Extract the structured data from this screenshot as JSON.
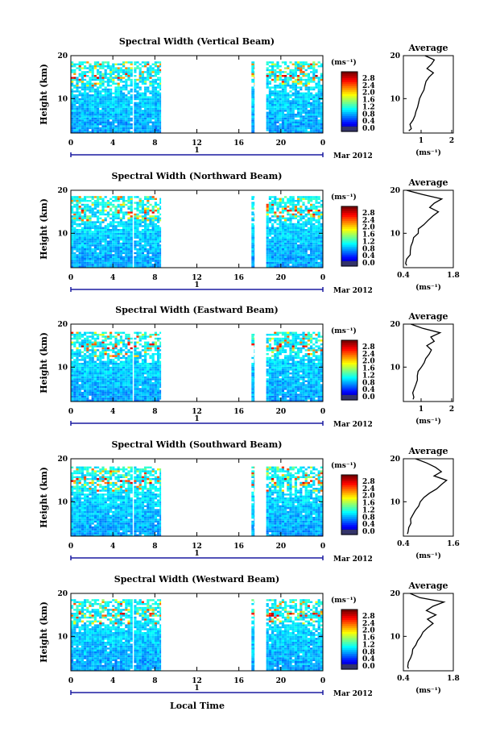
{
  "figure": {
    "units_label": "(ms⁻¹)",
    "average_title": "Average",
    "average_xlabel": "(ms⁻¹)",
    "height_label": "Height (km)",
    "local_time_label": "Local Time",
    "date_label": "Mar 2012",
    "day_marker": "1",
    "colors": {
      "axis": "#000000",
      "day_marker": "#1a1aa0"
    }
  },
  "chart_data": [
    {
      "type": "heatmap",
      "title": "Spectral Width (Vertical Beam)",
      "xlabel": "Local Time",
      "ylabel": "Height (km)",
      "xlim": [
        0,
        24
      ],
      "ylim": [
        2,
        20
      ],
      "xticks": [
        "0",
        "4",
        "8",
        "12",
        "16",
        "20",
        "0"
      ],
      "yticks": [
        "20",
        "10"
      ],
      "colorbar": {
        "label": "(ms⁻¹)",
        "ticks": [
          "2.8",
          "2.4",
          "2.0",
          "1.6",
          "1.2",
          "0.8",
          "0.4",
          "0.0"
        ],
        "range": [
          0,
          3.0
        ]
      },
      "data_segments": [
        [
          0,
          5.9
        ],
        [
          6.0,
          8.6
        ],
        [
          17.2,
          17.5
        ],
        [
          18.6,
          24.0
        ]
      ],
      "top_km": 19.0,
      "average_profile": {
        "xlim": [
          0.2,
          2.2
        ],
        "xticks": [
          "1",
          "2"
        ],
        "height_km": [
          2.5,
          3,
          4,
          5,
          6,
          7,
          8,
          9,
          10,
          11,
          12,
          13,
          14,
          15,
          16,
          17,
          18,
          19,
          20
        ],
        "values": [
          0.45,
          0.55,
          0.52,
          0.6,
          0.65,
          0.7,
          0.75,
          0.82,
          0.9,
          0.95,
          1.0,
          1.05,
          1.15,
          1.25,
          1.4,
          1.1,
          1.3,
          1.5,
          1.1
        ]
      }
    },
    {
      "type": "heatmap",
      "title": "Spectral Width (Northward Beam)",
      "xlabel": "Local Time",
      "ylabel": "Height (km)",
      "xlim": [
        0,
        24
      ],
      "ylim": [
        2,
        20
      ],
      "xticks": [
        "0",
        "4",
        "8",
        "12",
        "16",
        "20",
        "0"
      ],
      "yticks": [
        "20",
        "10"
      ],
      "colorbar": {
        "label": "(ms⁻¹)",
        "ticks": [
          "2.8",
          "2.4",
          "2.0",
          "1.6",
          "1.2",
          "0.8",
          "0.4",
          "0.0"
        ],
        "range": [
          0,
          3.0
        ]
      },
      "data_segments": [
        [
          0,
          5.9
        ],
        [
          6.0,
          8.6
        ],
        [
          17.2,
          17.5
        ],
        [
          18.6,
          24.0
        ]
      ],
      "top_km": 18.8,
      "average_profile": {
        "xlim": [
          0.4,
          1.8
        ],
        "xticks": [
          "0.4",
          "1.8"
        ],
        "height_km": [
          2.5,
          3,
          4,
          5,
          6,
          7,
          8,
          9,
          10,
          11,
          12,
          13,
          14,
          15,
          16,
          17,
          18,
          19,
          20
        ],
        "values": [
          0.5,
          0.48,
          0.52,
          0.55,
          0.6,
          0.62,
          0.68,
          0.72,
          0.78,
          0.85,
          0.95,
          1.05,
          1.2,
          1.35,
          1.1,
          1.25,
          1.45,
          0.9,
          0.5
        ]
      }
    },
    {
      "type": "heatmap",
      "title": "Spectral Width (Eastward Beam)",
      "xlabel": "Local Time",
      "ylabel": "Height (km)",
      "xlim": [
        0,
        24
      ],
      "ylim": [
        2,
        20
      ],
      "xticks": [
        "0",
        "4",
        "8",
        "12",
        "16",
        "20",
        "0"
      ],
      "yticks": [
        "20",
        "10"
      ],
      "colorbar": {
        "label": "(ms⁻¹)",
        "ticks": [
          "2.8",
          "2.4",
          "2.0",
          "1.6",
          "1.2",
          "0.8",
          "0.4",
          "0.0"
        ],
        "range": [
          0,
          3.0
        ]
      },
      "data_segments": [
        [
          0,
          5.9
        ],
        [
          6.0,
          8.6
        ],
        [
          17.2,
          17.5
        ],
        [
          18.6,
          24.0
        ]
      ],
      "top_km": 18.5,
      "average_profile": {
        "xlim": [
          0.2,
          2.2
        ],
        "xticks": [
          "1",
          "2"
        ],
        "height_km": [
          2.5,
          3,
          4,
          5,
          6,
          7,
          8,
          9,
          10,
          11,
          12,
          13,
          14,
          15,
          16,
          17,
          18,
          19,
          20
        ],
        "values": [
          0.55,
          0.6,
          0.58,
          0.62,
          0.68,
          0.72,
          0.8,
          0.85,
          0.95,
          1.0,
          1.05,
          1.2,
          1.35,
          1.15,
          1.5,
          1.3,
          1.7,
          1.0,
          0.45
        ]
      }
    },
    {
      "type": "heatmap",
      "title": "Spectral Width (Southward Beam)",
      "xlabel": "Local Time",
      "ylabel": "Height (km)",
      "xlim": [
        0,
        24
      ],
      "ylim": [
        2,
        20
      ],
      "xticks": [
        "0",
        "4",
        "8",
        "12",
        "16",
        "20",
        "0"
      ],
      "yticks": [
        "20",
        "10"
      ],
      "colorbar": {
        "label": "(ms⁻¹)",
        "ticks": [
          "2.8",
          "2.4",
          "2.0",
          "1.6",
          "1.2",
          "0.8",
          "0.4",
          "0.0"
        ],
        "range": [
          0,
          3.0
        ]
      },
      "data_segments": [
        [
          0,
          5.9
        ],
        [
          6.0,
          8.6
        ],
        [
          17.2,
          17.5
        ],
        [
          18.6,
          24.0
        ]
      ],
      "top_km": 18.6,
      "average_profile": {
        "xlim": [
          0.4,
          1.8
        ],
        "xticks": [
          "0.4",
          "1.6"
        ],
        "height_km": [
          2.5,
          3,
          4,
          5,
          6,
          7,
          8,
          9,
          10,
          11,
          12,
          13,
          14,
          15,
          16,
          17,
          18,
          19,
          20
        ],
        "values": [
          0.5,
          0.55,
          0.52,
          0.58,
          0.62,
          0.68,
          0.75,
          0.8,
          0.88,
          0.98,
          1.1,
          1.3,
          1.45,
          1.6,
          1.25,
          1.5,
          1.3,
          1.1,
          0.7
        ]
      }
    },
    {
      "type": "heatmap",
      "title": "Spectral Width (Westward Beam)",
      "xlabel": "Local Time",
      "ylabel": "Height (km)",
      "xlim": [
        0,
        24
      ],
      "ylim": [
        2,
        20
      ],
      "xticks": [
        "0",
        "4",
        "8",
        "12",
        "16",
        "20",
        "0"
      ],
      "yticks": [
        "20",
        "10"
      ],
      "colorbar": {
        "label": "(ms⁻¹)",
        "ticks": [
          "2.8",
          "2.4",
          "2.0",
          "1.6",
          "1.2",
          "0.8",
          "0.4",
          "0.0"
        ],
        "range": [
          0,
          3.0
        ]
      },
      "data_segments": [
        [
          0,
          5.9
        ],
        [
          6.0,
          8.6
        ],
        [
          17.2,
          17.5
        ],
        [
          18.6,
          24.0
        ]
      ],
      "top_km": 19.0,
      "average_profile": {
        "xlim": [
          0.4,
          1.8
        ],
        "xticks": [
          "0.4",
          "1.8"
        ],
        "height_km": [
          2.5,
          3,
          4,
          5,
          6,
          7,
          8,
          9,
          10,
          11,
          12,
          13,
          14,
          15,
          16,
          17,
          18,
          19,
          20
        ],
        "values": [
          0.5,
          0.52,
          0.55,
          0.6,
          0.63,
          0.68,
          0.72,
          0.78,
          0.85,
          0.92,
          1.05,
          1.25,
          1.1,
          1.3,
          1.0,
          1.2,
          1.5,
          0.9,
          0.55
        ]
      }
    }
  ]
}
